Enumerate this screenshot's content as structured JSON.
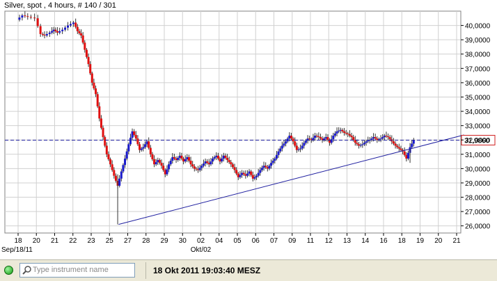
{
  "header": {
    "title": "Silver, spot , 4 hours, # 140 / 301"
  },
  "colors": {
    "up": "#1a1acc",
    "down": "#e01010",
    "trendline": "#2020a0",
    "grid": "#d0d0d0",
    "price_box": "#d02020"
  },
  "chart_data": {
    "type": "candlestick",
    "timeframe": "4 hours",
    "ylim": [
      25500,
      41000
    ],
    "y_ticks": [
      {
        "value": 26000,
        "label": "26,0000"
      },
      {
        "value": 27000,
        "label": "27,0000"
      },
      {
        "value": 28000,
        "label": "28,0000"
      },
      {
        "value": 29000,
        "label": "29,0000"
      },
      {
        "value": 30000,
        "label": "30,0000"
      },
      {
        "value": 31000,
        "label": "31,0000"
      },
      {
        "value": 32000,
        "label": "32,0000"
      },
      {
        "value": 33000,
        "label": "33,0000"
      },
      {
        "value": 34000,
        "label": "34,0000"
      },
      {
        "value": 35000,
        "label": "35,0000"
      },
      {
        "value": 36000,
        "label": "36,0000"
      },
      {
        "value": 37000,
        "label": "37,0000"
      },
      {
        "value": 38000,
        "label": "38,0000"
      },
      {
        "value": 39000,
        "label": "39,0000"
      },
      {
        "value": 40000,
        "label": "40,0000"
      }
    ],
    "x_ticks": [
      "18",
      "20",
      "21",
      "22",
      "23",
      "25",
      "27",
      "28",
      "29",
      "30",
      "02",
      "04",
      "05",
      "06",
      "07",
      "09",
      "11",
      "12",
      "13",
      "14",
      "16",
      "18",
      "19",
      "20",
      "21"
    ],
    "x_sub_labels": [
      {
        "tick": 0,
        "label": "Sep/18/11"
      },
      {
        "tick": 10,
        "label": "Okt/02"
      }
    ],
    "current_price": {
      "value": 31986,
      "label": "31,9860"
    },
    "trendline": {
      "start": {
        "tick": 5.5,
        "value": 26100
      },
      "end": {
        "tick": 24.4,
        "value": 32350
      }
    },
    "price_path": [
      [
        0.0,
        40400
      ],
      [
        0.3,
        40700
      ],
      [
        0.6,
        40600
      ],
      [
        1.0,
        40500
      ],
      [
        1.3,
        39400
      ],
      [
        1.5,
        39300
      ],
      [
        1.8,
        39500
      ],
      [
        2.0,
        39700
      ],
      [
        2.2,
        39500
      ],
      [
        2.5,
        39700
      ],
      [
        2.8,
        40000
      ],
      [
        3.1,
        40200
      ],
      [
        3.3,
        39600
      ],
      [
        3.5,
        39300
      ],
      [
        3.7,
        38300
      ],
      [
        3.9,
        37300
      ],
      [
        4.1,
        36000
      ],
      [
        4.3,
        35200
      ],
      [
        4.5,
        33500
      ],
      [
        4.7,
        32200
      ],
      [
        4.9,
        31000
      ],
      [
        5.1,
        30300
      ],
      [
        5.3,
        29500
      ],
      [
        5.5,
        28800
      ],
      [
        5.7,
        29800
      ],
      [
        5.9,
        30700
      ],
      [
        6.1,
        31700
      ],
      [
        6.3,
        32600
      ],
      [
        6.5,
        32100
      ],
      [
        6.7,
        31300
      ],
      [
        6.9,
        31500
      ],
      [
        7.1,
        31900
      ],
      [
        7.3,
        31000
      ],
      [
        7.5,
        30300
      ],
      [
        7.7,
        30600
      ],
      [
        7.9,
        30200
      ],
      [
        8.1,
        29600
      ],
      [
        8.3,
        30300
      ],
      [
        8.5,
        30800
      ],
      [
        8.7,
        30600
      ],
      [
        8.9,
        30900
      ],
      [
        9.1,
        30500
      ],
      [
        9.3,
        30800
      ],
      [
        9.5,
        30300
      ],
      [
        9.7,
        30000
      ],
      [
        9.9,
        29900
      ],
      [
        10.1,
        30200
      ],
      [
        10.3,
        30500
      ],
      [
        10.5,
        30300
      ],
      [
        10.7,
        30700
      ],
      [
        10.9,
        30900
      ],
      [
        11.1,
        30500
      ],
      [
        11.3,
        30900
      ],
      [
        11.5,
        30600
      ],
      [
        11.7,
        30300
      ],
      [
        11.9,
        29900
      ],
      [
        12.1,
        29400
      ],
      [
        12.3,
        29700
      ],
      [
        12.5,
        29500
      ],
      [
        12.7,
        29800
      ],
      [
        12.9,
        29300
      ],
      [
        13.1,
        29500
      ],
      [
        13.3,
        29900
      ],
      [
        13.5,
        30200
      ],
      [
        13.7,
        30000
      ],
      [
        13.9,
        30400
      ],
      [
        14.1,
        30700
      ],
      [
        14.3,
        31200
      ],
      [
        14.5,
        31600
      ],
      [
        14.7,
        31900
      ],
      [
        14.9,
        32300
      ],
      [
        15.1,
        31900
      ],
      [
        15.3,
        31300
      ],
      [
        15.5,
        31400
      ],
      [
        15.7,
        31800
      ],
      [
        15.9,
        32100
      ],
      [
        16.1,
        32000
      ],
      [
        16.3,
        32300
      ],
      [
        16.5,
        32200
      ],
      [
        16.7,
        32000
      ],
      [
        16.9,
        32200
      ],
      [
        17.1,
        31800
      ],
      [
        17.3,
        32300
      ],
      [
        17.5,
        32600
      ],
      [
        17.7,
        32700
      ],
      [
        17.9,
        32500
      ],
      [
        18.1,
        32400
      ],
      [
        18.3,
        32200
      ],
      [
        18.5,
        31800
      ],
      [
        18.7,
        31600
      ],
      [
        18.9,
        31700
      ],
      [
        19.1,
        31900
      ],
      [
        19.3,
        32000
      ],
      [
        19.5,
        32200
      ],
      [
        19.7,
        32000
      ],
      [
        19.9,
        32100
      ],
      [
        20.1,
        32300
      ],
      [
        20.3,
        32200
      ],
      [
        20.5,
        31900
      ],
      [
        20.7,
        31600
      ],
      [
        20.9,
        31400
      ],
      [
        21.1,
        31200
      ],
      [
        21.3,
        30700
      ],
      [
        21.5,
        31500
      ],
      [
        21.7,
        31986
      ]
    ]
  },
  "footer": {
    "search_placeholder": "Type instrument name",
    "datetime": "18 Okt 2011 19:03:40 MESZ"
  }
}
